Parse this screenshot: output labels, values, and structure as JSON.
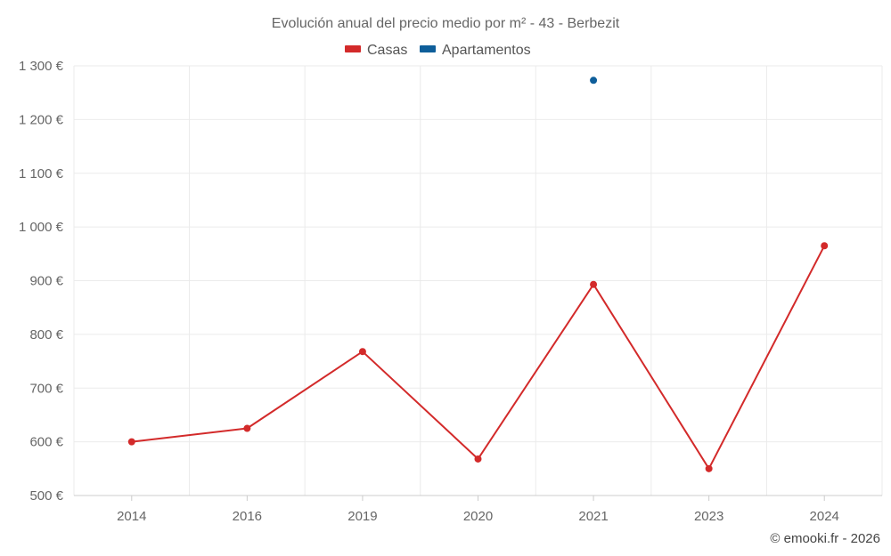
{
  "chart_data": {
    "type": "line",
    "title": "Evolución anual del precio medio por m² - 43 - Berbezit",
    "categories": [
      "2014",
      "2016",
      "2019",
      "2020",
      "2021",
      "2023",
      "2024"
    ],
    "y_ticks": [
      "500 €",
      "600 €",
      "700 €",
      "800 €",
      "900 €",
      "1 000 €",
      "1 100 €",
      "1 200 €",
      "1 300 €"
    ],
    "ylim": [
      500,
      1300
    ],
    "grid": true,
    "legend_position": "top",
    "series": [
      {
        "name": "Casas",
        "color": "#d32a2a",
        "values": [
          600,
          625,
          768,
          568,
          893,
          550,
          965
        ]
      },
      {
        "name": "Apartamentos",
        "color": "#0e5e9a",
        "values": [
          null,
          null,
          null,
          null,
          1273,
          null,
          null
        ]
      }
    ]
  },
  "credit": "© emooki.fr - 2026"
}
